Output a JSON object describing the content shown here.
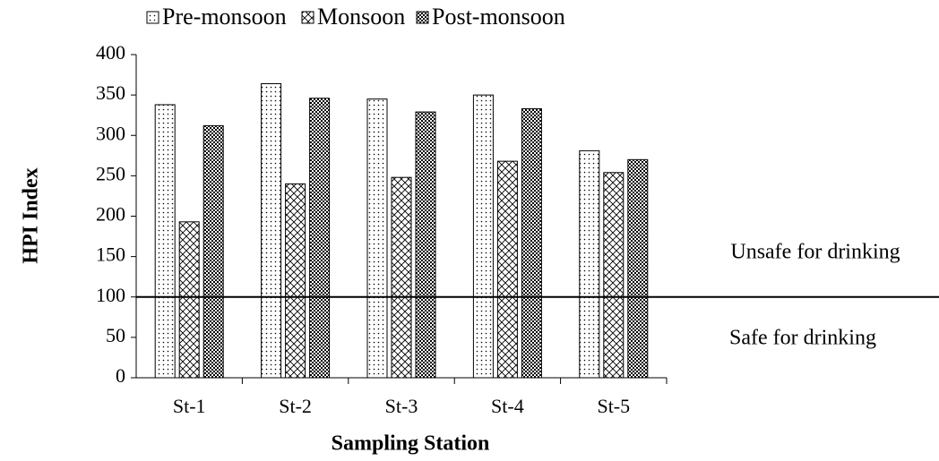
{
  "chart_data": {
    "type": "bar",
    "categories": [
      "St-1",
      "St-2",
      "St-3",
      "St-4",
      "St-5"
    ],
    "series": [
      {
        "name": "Pre-monsoon",
        "color": "#000000",
        "pattern": "dots",
        "values": [
          338,
          364,
          345,
          350,
          281
        ]
      },
      {
        "name": "Monsoon",
        "color": "#000000",
        "pattern": "crosshatch",
        "values": [
          193,
          240,
          248,
          268,
          254
        ]
      },
      {
        "name": "Post-monsoon",
        "color": "#000000",
        "pattern": "checker",
        "values": [
          312,
          346,
          329,
          333,
          270
        ]
      }
    ],
    "xlabel": "Sampling Station",
    "ylabel": "HPI Index",
    "ylim": [
      0,
      400
    ],
    "yticks": [
      0,
      50,
      100,
      150,
      200,
      250,
      300,
      350,
      400
    ],
    "threshold": 100,
    "annotations": [
      "Unsafe for drinking",
      "Safe for drinking"
    ],
    "legend": "top",
    "grid": false
  }
}
